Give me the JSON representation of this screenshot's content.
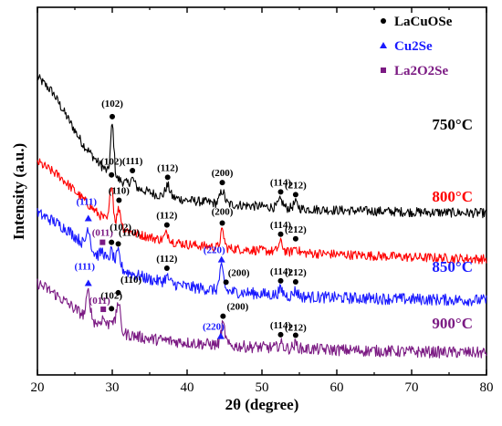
{
  "colors": {
    "LaCuOSe": "#000000",
    "Cu2Se": "#1a1aff",
    "La2O2Se": "#7b1a83"
  },
  "chart_data": {
    "type": "line",
    "xlabel": "2θ (degree)",
    "ylabel": "Intensity (a.u.)",
    "xlim": [
      20,
      80
    ],
    "xticks": [
      "20",
      "30",
      "40",
      "50",
      "60",
      "70",
      "80"
    ],
    "legend": {
      "placement": "top-right",
      "entries": [
        {
          "phase": "LaCuOSe",
          "marker": "circle",
          "sub": ""
        },
        {
          "phase": "Cu2Se",
          "marker": "triangle",
          "sub": ""
        },
        {
          "phase": "La2O2Se",
          "marker": "square",
          "sub": ""
        }
      ]
    },
    "series": [
      {
        "name": "750°C",
        "color": "#000000",
        "baseline": [
          [
            20,
            81
          ],
          [
            22,
            77
          ],
          [
            24,
            70
          ],
          [
            26,
            63
          ],
          [
            28,
            58
          ],
          [
            30,
            54
          ],
          [
            33,
            51
          ],
          [
            36,
            49
          ],
          [
            40,
            47.5
          ],
          [
            45,
            46.5
          ],
          [
            50,
            45.8
          ],
          [
            55,
            45.2
          ],
          [
            60,
            44.8
          ],
          [
            70,
            44.3
          ],
          [
            80,
            44
          ]
        ],
        "noise": 1.3,
        "peaks": [
          {
            "x": 30.0,
            "height": 14,
            "width": 0.22,
            "label": "(102)",
            "marker": "LaCuOSe"
          },
          {
            "x": 32.7,
            "height": 2,
            "width": 0.3,
            "label": "(111)",
            "marker": "LaCuOSe"
          },
          {
            "x": 37.4,
            "height": 3,
            "width": 0.3,
            "label": "(112)",
            "marker": "LaCuOSe"
          },
          {
            "x": 44.7,
            "height": 3.5,
            "width": 0.3,
            "label": "(200)",
            "marker": "LaCuOSe"
          },
          {
            "x": 52.5,
            "height": 2,
            "width": 0.3,
            "label": "(114)",
            "marker": "LaCuOSe"
          },
          {
            "x": 54.5,
            "height": 1.5,
            "width": 0.3,
            "label": "(212)",
            "marker": "LaCuOSe"
          }
        ]
      },
      {
        "name": "800°C",
        "color": "#ff0000",
        "baseline": [
          [
            20,
            58
          ],
          [
            23,
            54
          ],
          [
            26,
            48
          ],
          [
            28,
            44
          ],
          [
            30,
            41
          ],
          [
            33,
            38.5
          ],
          [
            36,
            37
          ],
          [
            40,
            35.5
          ],
          [
            45,
            34.5
          ],
          [
            50,
            33.8
          ],
          [
            55,
            33.2
          ],
          [
            60,
            32.8
          ],
          [
            70,
            32
          ],
          [
            80,
            31.5
          ]
        ],
        "noise": 1.3,
        "peaks": [
          {
            "x": 29.9,
            "height": 11,
            "width": 0.22,
            "label": "(102)",
            "marker": "LaCuOSe"
          },
          {
            "x": 30.9,
            "height": 5,
            "width": 0.25,
            "label": "(110)",
            "marker": "LaCuOSe"
          },
          {
            "x": 37.3,
            "height": 2,
            "width": 0.3,
            "label": "(112)",
            "marker": "LaCuOSe"
          },
          {
            "x": 44.7,
            "height": 4.5,
            "width": 0.25,
            "label": "(200)",
            "marker": "LaCuOSe"
          },
          {
            "x": 52.5,
            "height": 2.5,
            "width": 0.3,
            "label": "(114)",
            "marker": "LaCuOSe"
          },
          {
            "x": 54.5,
            "height": 1.5,
            "width": 0.3,
            "label": "(212)",
            "marker": "LaCuOSe"
          }
        ]
      },
      {
        "name": "850°C",
        "color": "#1a1aff",
        "baseline": [
          [
            20,
            44
          ],
          [
            22,
            42
          ],
          [
            24,
            39.5
          ],
          [
            26,
            36
          ],
          [
            28,
            32.5
          ],
          [
            30,
            30
          ],
          [
            32,
            28
          ],
          [
            35,
            26
          ],
          [
            40,
            24
          ],
          [
            45,
            22.8
          ],
          [
            50,
            22
          ],
          [
            55,
            21.3
          ],
          [
            60,
            21
          ],
          [
            70,
            20.6
          ],
          [
            80,
            20.3
          ]
        ],
        "noise": 1.6,
        "peaks": [
          {
            "x": 26.8,
            "height": 5.5,
            "width": 0.25,
            "label": "(111)",
            "marker": "Cu2Se"
          },
          {
            "x": 28.7,
            "height": 2,
            "width": 0.3,
            "label": "(011)",
            "marker": "La2O2Se"
          },
          {
            "x": 29.9,
            "height": 3.5,
            "width": 0.25,
            "label": "(102)",
            "marker": "LaCuOSe"
          },
          {
            "x": 30.8,
            "height": 4,
            "width": 0.25,
            "label": "(110)",
            "marker": "LaCuOSe"
          },
          {
            "x": 37.3,
            "height": 1.5,
            "width": 0.3,
            "label": "(112)",
            "marker": "LaCuOSe"
          },
          {
            "x": 44.6,
            "height": 6,
            "width": 0.28,
            "label": "(220)",
            "marker": "Cu2Se"
          },
          {
            "x": 45.2,
            "height": 0,
            "width": 0.3,
            "label": "(200)",
            "marker": "LaCuOSe"
          },
          {
            "x": 52.5,
            "height": 1.5,
            "width": 0.3,
            "label": "(114)",
            "marker": "LaCuOSe"
          },
          {
            "x": 54.5,
            "height": 1.5,
            "width": 0.3,
            "label": "(212)",
            "marker": "LaCuOSe"
          }
        ]
      },
      {
        "name": "900°C",
        "color": "#7b1a83",
        "baseline": [
          [
            20,
            25
          ],
          [
            22,
            22.5
          ],
          [
            24,
            19.5
          ],
          [
            26,
            16.5
          ],
          [
            28,
            14
          ],
          [
            30,
            12.5
          ],
          [
            32,
            11
          ],
          [
            35,
            9.8
          ],
          [
            40,
            8.8
          ],
          [
            45,
            8
          ],
          [
            50,
            7.5
          ],
          [
            55,
            7.1
          ],
          [
            60,
            6.8
          ],
          [
            70,
            6.3
          ],
          [
            80,
            6
          ]
        ],
        "noise": 1.6,
        "peaks": [
          {
            "x": 26.8,
            "height": 7,
            "width": 0.25,
            "label": "(111)",
            "marker": "Cu2Se"
          },
          {
            "x": 28.8,
            "height": 2,
            "width": 0.3,
            "label": "(011)",
            "marker": "La2O2Se"
          },
          {
            "x": 29.9,
            "height": 3,
            "width": 0.25,
            "label": "(102)",
            "marker": "LaCuOSe"
          },
          {
            "x": 30.8,
            "height": 8,
            "width": 0.25,
            "label": "(110)",
            "marker": "LaCuOSe"
          },
          {
            "x": 44.5,
            "height": 0,
            "width": 0.3,
            "label": "(220)",
            "marker": "Cu2Se"
          },
          {
            "x": 44.8,
            "height": 5.5,
            "width": 0.28,
            "label": "(200)",
            "marker": "LaCuOSe"
          },
          {
            "x": 52.5,
            "height": 1.2,
            "width": 0.3,
            "label": "(114)",
            "marker": "LaCuOSe"
          },
          {
            "x": 54.5,
            "height": 1.2,
            "width": 0.3,
            "label": "(212)",
            "marker": "LaCuOSe"
          }
        ]
      }
    ]
  }
}
